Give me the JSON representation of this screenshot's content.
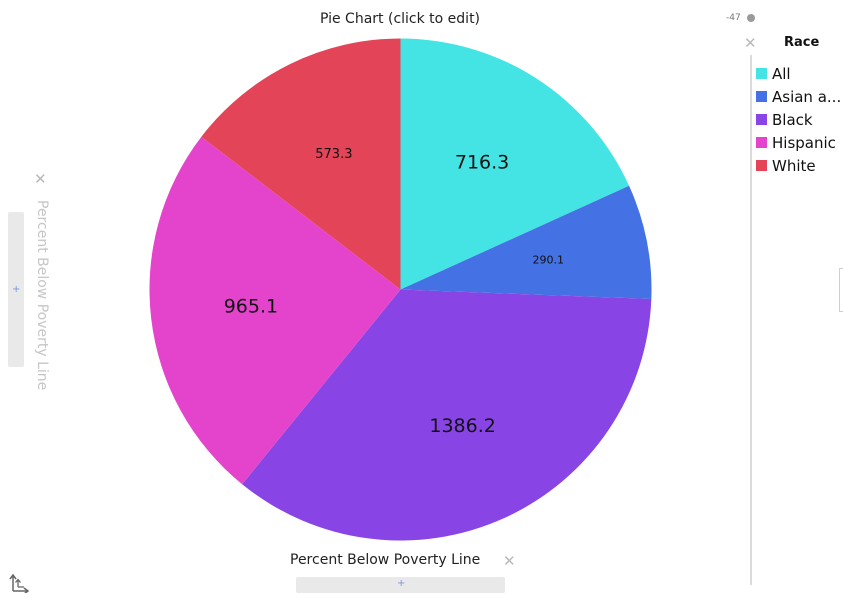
{
  "chart_data": {
    "type": "pie",
    "title": "Pie Chart (click to edit)",
    "xlabel": "Percent Below Poverty Line",
    "ylabel": "Percent Below Poverty Line",
    "legend_title": "Race",
    "legend_position": "right",
    "categories": [
      "All",
      "Asian a...",
      "Black",
      "Hispanic",
      "White"
    ],
    "values": [
      716.3,
      290.1,
      1386.2,
      965.1,
      573.3
    ],
    "value_labels": [
      "716.3",
      "290.1",
      "1386.2",
      "965.1",
      "573.3"
    ],
    "colors": [
      "#44e4e4",
      "#4472e4",
      "#8844e4",
      "#e444cc",
      "#e44458"
    ]
  },
  "ui": {
    "zoom_readout": "-47",
    "add_symbol": "+"
  }
}
